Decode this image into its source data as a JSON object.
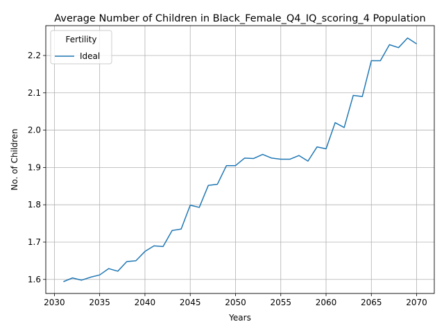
{
  "chart_data": {
    "type": "line",
    "title": "Average Number of Children in Black_Female_Q4_IQ_scoring_4 Population",
    "xlabel": "Years",
    "ylabel": "No. of Children",
    "xlim": [
      2029.05,
      2071.95
    ],
    "ylim": [
      1.5624,
      2.2799
    ],
    "x_ticks": [
      "2030",
      "2035",
      "2040",
      "2045",
      "2050",
      "2055",
      "2060",
      "2065",
      "2070"
    ],
    "y_ticks": [
      "1.6",
      "1.7",
      "1.8",
      "1.9",
      "2.0",
      "2.1",
      "2.2"
    ],
    "grid": true,
    "legend": {
      "title": "Fertility",
      "placement": "top-left"
    },
    "x": [
      2031,
      2032,
      2033,
      2034,
      2035,
      2036,
      2037,
      2038,
      2039,
      2040,
      2041,
      2042,
      2043,
      2044,
      2045,
      2046,
      2047,
      2048,
      2049,
      2050,
      2051,
      2052,
      2053,
      2054,
      2055,
      2056,
      2057,
      2058,
      2059,
      2060,
      2061,
      2062,
      2063,
      2064,
      2065,
      2066,
      2067,
      2068,
      2069,
      2070
    ],
    "series": [
      {
        "name": "Ideal",
        "color": "#1f77b4",
        "values": [
          1.594,
          1.604,
          1.598,
          1.606,
          1.612,
          1.629,
          1.622,
          1.648,
          1.65,
          1.675,
          1.69,
          1.688,
          1.731,
          1.735,
          1.799,
          1.793,
          1.852,
          1.855,
          1.905,
          1.905,
          1.925,
          1.924,
          1.935,
          1.925,
          1.922,
          1.922,
          1.932,
          1.917,
          1.955,
          1.95,
          2.02,
          2.007,
          2.093,
          2.09,
          2.186,
          2.186,
          2.229,
          2.221,
          2.247,
          2.231
        ]
      }
    ]
  }
}
